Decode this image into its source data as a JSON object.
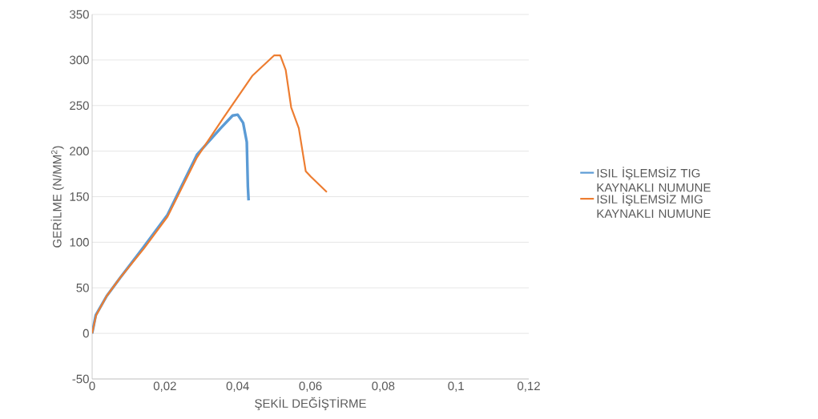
{
  "chart_data": {
    "type": "line",
    "xlabel": "ŞEKİL DEĞİŞTİRME",
    "ylabel": "GERİLME (N/MM$^{2}$)",
    "xlim": [
      0,
      0.12
    ],
    "ylim": [
      -50,
      350
    ],
    "xticks": [
      0,
      {
        "value": 0.02,
        "label": "0,02"
      },
      {
        "value": 0.04,
        "label": "0,04"
      },
      {
        "value": 0.06,
        "label": "0,06"
      },
      {
        "value": 0.08,
        "label": "0,08"
      },
      {
        "value": 0.1,
        "label": "0,1"
      },
      {
        "value": 0.12,
        "label": "0,12"
      }
    ],
    "yticks": [
      -50,
      0,
      50,
      100,
      150,
      200,
      250,
      300,
      350
    ],
    "grid": "y",
    "legend": "right",
    "marker": "none",
    "line_style": "solid",
    "series": [
      {
        "name": "ISIL İŞLEMSİZ TIG KAYNAKLI NUMUNE",
        "color": "#5b9bd5",
        "x": [
          0,
          0.001,
          0.004,
          0.0077,
          0.014,
          0.0207,
          0.0288,
          0.0353,
          0.0386,
          0.04,
          0.0415,
          0.0425,
          0.0428,
          0.043
        ],
        "values": [
          0,
          20,
          41,
          61,
          94,
          130,
          196,
          225,
          239,
          240,
          231,
          210,
          161,
          146
        ]
      },
      {
        "name": "ISIL İŞLEMSİZ MIG KAYNAKLI NUMUNE",
        "color": "#ed7d31",
        "x": [
          0,
          0.0011,
          0.004,
          0.0077,
          0.0142,
          0.0207,
          0.0288,
          0.036,
          0.0441,
          0.05,
          0.0517,
          0.0532,
          0.0547,
          0.0568,
          0.0587,
          0.0601,
          0.0645
        ],
        "values": [
          0,
          20,
          41,
          61,
          93,
          128,
          193,
          236,
          283,
          305,
          305,
          289,
          248,
          225,
          178,
          172,
          155
        ]
      }
    ]
  }
}
